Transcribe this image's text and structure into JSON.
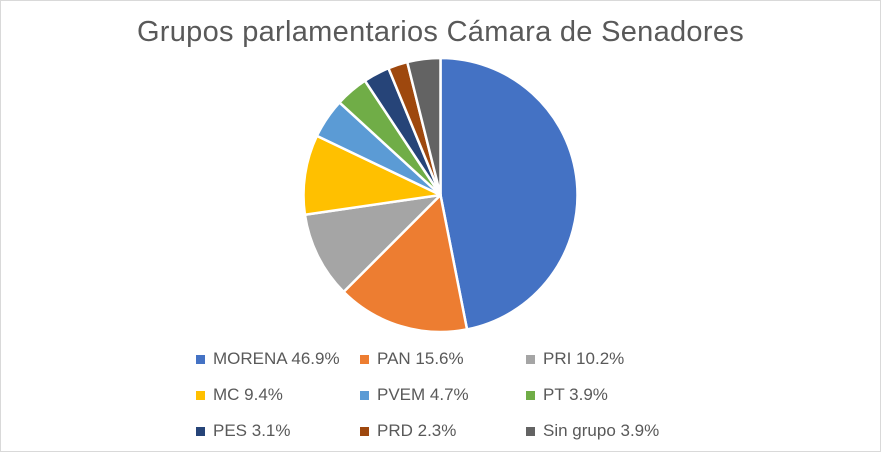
{
  "chart_data": {
    "type": "pie",
    "title": "Grupos parlamentarios Cámara de Senadores",
    "legend_position": "bottom",
    "slices": [
      {
        "label": "MORENA",
        "value": 46.9,
        "legend": "MORENA 46.9%",
        "color": "#4472C4"
      },
      {
        "label": "PAN",
        "value": 15.6,
        "legend": "PAN 15.6%",
        "color": "#ED7D31"
      },
      {
        "label": "PRI",
        "value": 10.2,
        "legend": "PRI 10.2%",
        "color": "#A5A5A5"
      },
      {
        "label": "MC",
        "value": 9.4,
        "legend": "MC 9.4%",
        "color": "#FFC000"
      },
      {
        "label": "PVEM",
        "value": 4.7,
        "legend": "PVEM 4.7%",
        "color": "#5B9BD5"
      },
      {
        "label": "PT",
        "value": 3.9,
        "legend": "PT 3.9%",
        "color": "#70AD47"
      },
      {
        "label": "PES",
        "value": 3.1,
        "legend": "PES 3.1%",
        "color": "#264478"
      },
      {
        "label": "PRD",
        "value": 2.3,
        "legend": "PRD 2.3%",
        "color": "#9E480E"
      },
      {
        "label": "Sin grupo",
        "value": 3.9,
        "legend": "Sin grupo 3.9%",
        "color": "#636363"
      }
    ]
  }
}
